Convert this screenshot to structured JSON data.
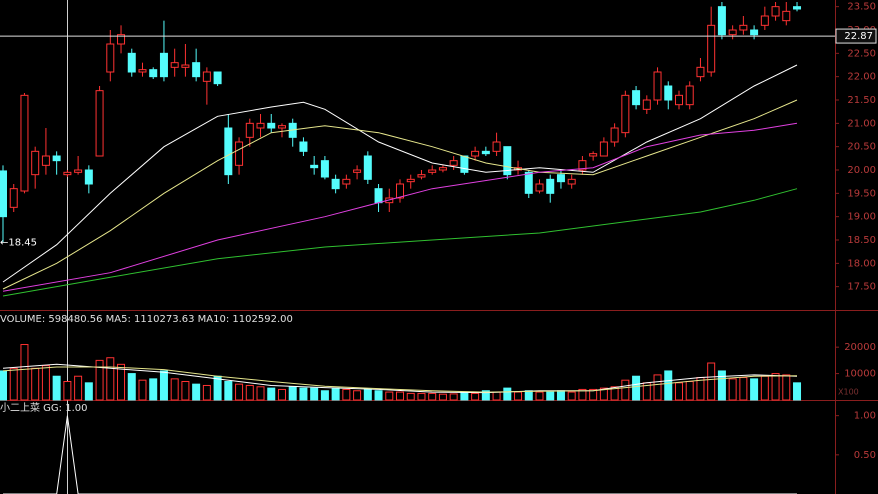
{
  "chart_data": [
    {
      "type": "candlestick",
      "open": [
        19.98,
        19.2,
        19.55,
        19.9,
        20.1,
        20.3,
        19.9,
        19.95,
        20.0,
        20.3,
        22.1,
        22.7,
        22.5,
        22.1,
        22.15,
        22.5,
        22.2,
        22.2,
        22.3,
        21.9,
        22.1,
        20.9,
        20.1,
        20.7,
        20.9,
        21.0,
        20.9,
        21.0,
        20.6,
        20.1,
        20.2,
        19.8,
        19.7,
        19.95,
        20.3,
        19.6,
        19.3,
        19.4,
        19.75,
        19.85,
        19.95,
        20.0,
        20.1,
        20.3,
        20.3,
        20.4,
        20.4,
        20.5,
        20.0,
        19.95,
        19.55,
        19.8,
        19.9,
        19.7,
        20.0,
        20.3,
        20.3,
        20.6,
        20.8,
        21.7,
        21.3,
        21.5,
        21.8,
        21.4,
        21.4,
        22.0,
        22.1,
        23.5,
        22.9,
        23.0,
        23.0,
        23.1,
        23.3,
        23.2,
        23.5
      ],
      "high": [
        20.1,
        19.7,
        21.65,
        20.5,
        20.9,
        20.4,
        20.0,
        20.3,
        20.1,
        21.8,
        23.0,
        23.1,
        22.6,
        22.3,
        22.2,
        23.2,
        22.6,
        22.7,
        22.6,
        22.2,
        22.1,
        21.2,
        20.7,
        21.1,
        21.2,
        21.2,
        21.0,
        21.1,
        20.7,
        20.3,
        20.3,
        19.9,
        19.9,
        20.1,
        20.4,
        19.7,
        19.6,
        19.8,
        19.9,
        20.0,
        20.1,
        20.1,
        20.3,
        20.3,
        20.5,
        20.5,
        20.8,
        20.5,
        20.2,
        20.0,
        19.8,
        19.9,
        20.0,
        19.9,
        20.3,
        20.4,
        20.7,
        21.0,
        21.7,
        21.8,
        21.6,
        22.2,
        21.9,
        21.7,
        21.9,
        22.4,
        23.5,
        23.6,
        23.1,
        23.3,
        23.1,
        23.5,
        23.6,
        23.6,
        23.6
      ],
      "low": [
        18.45,
        19.1,
        19.5,
        19.6,
        19.9,
        19.9,
        19.85,
        19.9,
        19.5,
        20.3,
        21.9,
        22.5,
        22.0,
        22.0,
        21.95,
        21.9,
        22.0,
        22.0,
        21.9,
        21.4,
        21.8,
        19.7,
        19.9,
        20.5,
        20.7,
        20.8,
        20.7,
        20.5,
        20.3,
        19.9,
        19.8,
        19.5,
        19.6,
        19.8,
        19.7,
        19.1,
        19.1,
        19.3,
        19.6,
        19.8,
        19.9,
        19.95,
        20.0,
        19.9,
        20.2,
        20.3,
        20.3,
        19.8,
        19.9,
        19.4,
        19.5,
        19.3,
        19.6,
        19.6,
        19.9,
        20.2,
        20.3,
        20.5,
        20.7,
        21.3,
        21.2,
        21.4,
        21.3,
        21.3,
        21.3,
        21.9,
        22.0,
        22.8,
        22.8,
        22.9,
        22.8,
        23.0,
        23.2,
        23.1,
        23.4
      ],
      "close": [
        19.0,
        19.6,
        21.6,
        20.4,
        20.3,
        20.2,
        19.95,
        20.0,
        19.7,
        21.7,
        22.7,
        22.9,
        22.1,
        22.15,
        22.0,
        22.0,
        22.3,
        22.25,
        22.0,
        22.1,
        21.85,
        19.9,
        20.6,
        21.0,
        21.0,
        20.9,
        20.95,
        20.7,
        20.4,
        20.05,
        19.85,
        19.6,
        19.8,
        20.0,
        19.8,
        19.3,
        19.4,
        19.7,
        19.8,
        19.9,
        20.0,
        20.05,
        20.2,
        19.95,
        20.4,
        20.35,
        20.6,
        19.9,
        20.05,
        19.5,
        19.7,
        19.5,
        19.75,
        19.8,
        20.2,
        20.35,
        20.6,
        20.9,
        21.6,
        21.4,
        21.5,
        22.1,
        21.5,
        21.6,
        21.8,
        22.2,
        23.1,
        22.9,
        23.0,
        23.1,
        22.9,
        23.3,
        23.5,
        23.4,
        23.45
      ],
      "up_color": "#ff3232",
      "down_color": "#54fcfc",
      "lines": [
        {
          "color": "#ffffff",
          "x": [
            0,
            5,
            10,
            15,
            20,
            25,
            28,
            30,
            35,
            40,
            45,
            50,
            55,
            60,
            65,
            70,
            74
          ],
          "values": [
            17.6,
            18.4,
            19.5,
            20.5,
            21.15,
            21.35,
            21.45,
            21.3,
            20.6,
            20.15,
            19.95,
            20.05,
            19.95,
            20.6,
            21.1,
            21.8,
            22.25
          ]
        },
        {
          "color": "#e6e68c",
          "x": [
            0,
            5,
            10,
            15,
            20,
            25,
            30,
            35,
            40,
            45,
            50,
            55,
            60,
            65,
            70,
            74
          ],
          "values": [
            17.45,
            18.0,
            18.7,
            19.5,
            20.2,
            20.8,
            20.95,
            20.8,
            20.5,
            20.15,
            19.95,
            19.9,
            20.3,
            20.7,
            21.1,
            21.5
          ]
        },
        {
          "color": "#e040e0",
          "x": [
            0,
            10,
            20,
            30,
            40,
            50,
            55,
            60,
            65,
            70,
            74
          ],
          "values": [
            17.4,
            17.8,
            18.5,
            19.0,
            19.6,
            19.95,
            20.05,
            20.5,
            20.75,
            20.85,
            21.0
          ]
        },
        {
          "color": "#30c030",
          "x": [
            0,
            10,
            20,
            30,
            40,
            50,
            60,
            65,
            70,
            74
          ],
          "values": [
            17.3,
            17.7,
            18.1,
            18.35,
            18.5,
            18.65,
            18.95,
            19.1,
            19.35,
            19.6
          ]
        }
      ],
      "ylim": [
        17.0,
        23.6
      ],
      "yticks": [
        {
          "value": 17.5,
          "label": "17.50"
        },
        {
          "value": 18,
          "label": "18.00"
        },
        {
          "value": 18.5,
          "label": "18.50"
        },
        {
          "value": 19,
          "label": "19.00"
        },
        {
          "value": 19.5,
          "label": "19.50"
        },
        {
          "value": 20,
          "label": "20.00"
        },
        {
          "value": 20.5,
          "label": "20.50"
        },
        {
          "value": 21,
          "label": "21.00"
        },
        {
          "value": 21.5,
          "label": "21.50"
        },
        {
          "value": 22,
          "label": "22.00"
        },
        {
          "value": 22.5,
          "label": "22.50"
        },
        {
          "value": 23,
          "label": "23.00"
        },
        {
          "value": 23.5,
          "label": "23.50"
        }
      ],
      "price_line": 22.87,
      "low_annotation": "←18.45"
    },
    {
      "type": "bar",
      "title": "VOLUME: 598480.56 MA5: 1110273.63 MA10: 1102592.00",
      "values": [
        11000,
        12000,
        21000,
        12000,
        13000,
        9000,
        7000,
        9000,
        6500,
        15000,
        16000,
        13500,
        10000,
        7500,
        8000,
        11000,
        8000,
        7000,
        6000,
        5500,
        9000,
        7000,
        6000,
        5500,
        5000,
        4500,
        4000,
        5000,
        4500,
        4500,
        3500,
        4500,
        4000,
        3500,
        4000,
        3500,
        3000,
        3000,
        2500,
        2500,
        2500,
        2200,
        2300,
        3000,
        2500,
        3500,
        3000,
        4500,
        3000,
        3500,
        3000,
        3000,
        3500,
        3000,
        4000,
        4000,
        4500,
        5000,
        7500,
        9000,
        6500,
        9500,
        11000,
        6500,
        7000,
        8500,
        14000,
        11000,
        8000,
        8500,
        8000,
        9000,
        10000,
        9500,
        6500
      ],
      "lines": [
        {
          "color": "#ffffff",
          "x": [
            0,
            5,
            10,
            15,
            20,
            25,
            30,
            35,
            40,
            45,
            50,
            55,
            60,
            65,
            70,
            74
          ],
          "values": [
            12000,
            13500,
            12000,
            10500,
            8000,
            5500,
            4700,
            4000,
            3000,
            2800,
            3500,
            3500,
            6500,
            8500,
            9500,
            9000
          ]
        },
        {
          "color": "#e6e68c",
          "x": [
            0,
            5,
            10,
            15,
            20,
            25,
            30,
            35,
            40,
            45,
            50,
            55,
            60,
            65,
            70,
            74
          ],
          "values": [
            11000,
            12500,
            12500,
            11500,
            9000,
            7000,
            5200,
            4300,
            3500,
            3000,
            3300,
            3500,
            5500,
            7500,
            9000,
            9200
          ]
        }
      ],
      "ylim": [
        0,
        26500
      ],
      "yticks": [
        10000,
        20000
      ],
      "unit": "X100"
    },
    {
      "type": "line",
      "title": "小二上菜 GG: 1.00",
      "values": [
        0,
        0,
        0,
        0,
        0,
        0,
        1,
        0,
        0,
        0,
        0,
        0,
        0,
        0,
        0,
        0,
        0,
        0,
        0,
        0,
        0,
        0,
        0,
        0,
        0,
        0,
        0,
        0,
        0,
        0,
        0,
        0,
        0,
        0,
        0,
        0,
        0,
        0,
        0,
        0,
        0,
        0,
        0,
        0,
        0,
        0,
        0,
        0,
        0,
        0,
        0,
        0,
        0,
        0,
        0,
        0,
        0,
        0,
        0,
        0,
        0,
        0,
        0,
        0,
        0,
        0,
        0,
        0,
        0,
        0,
        0,
        0,
        0,
        0,
        0
      ],
      "color": "#ffffff",
      "ylim": [
        0,
        1.2
      ],
      "yticks": [
        {
          "value": 0.5,
          "label": "0.50"
        },
        {
          "value": 1,
          "label": "1.00"
        }
      ]
    }
  ]
}
